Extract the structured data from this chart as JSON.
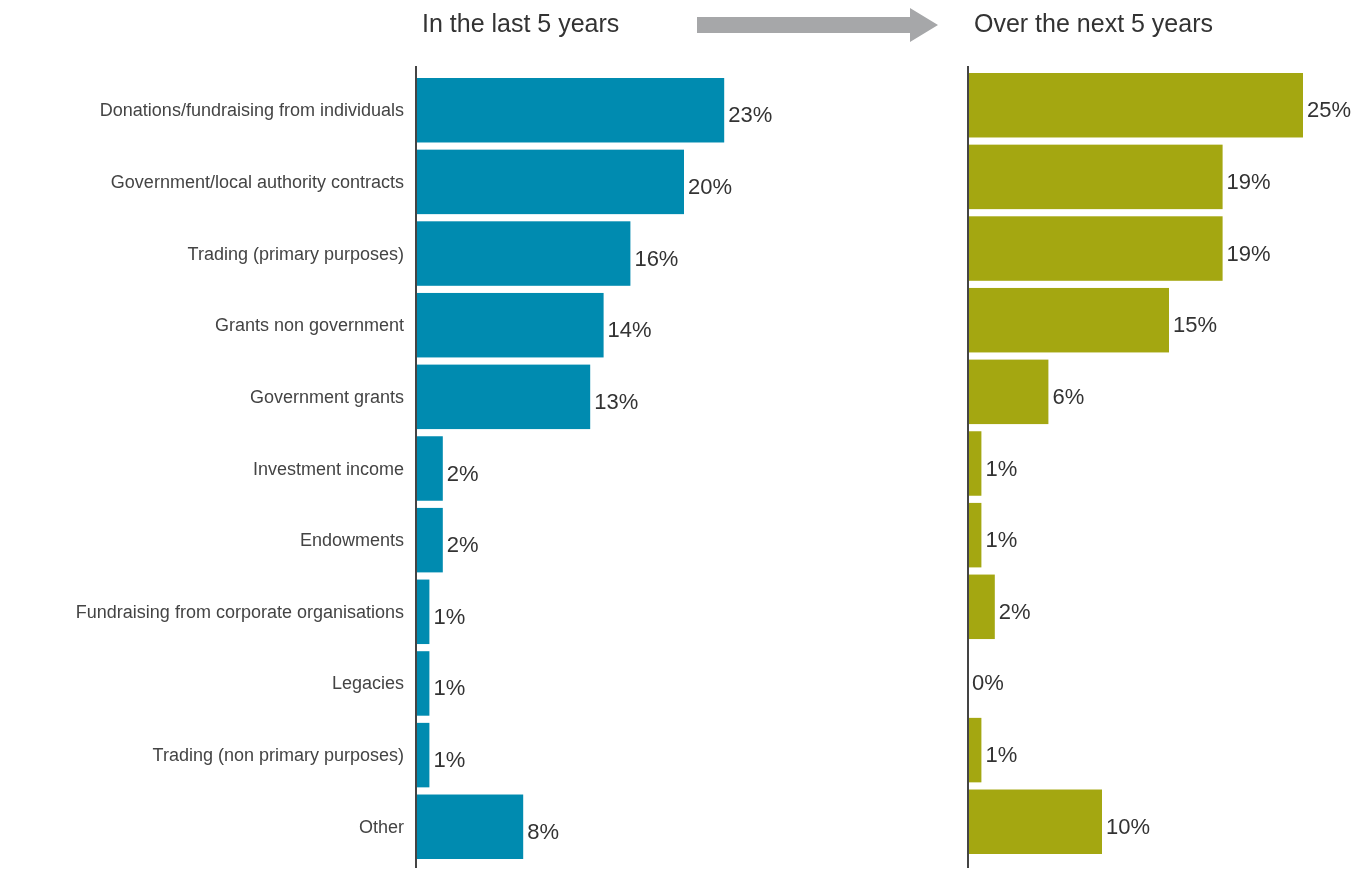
{
  "chart_data": [
    {
      "type": "bar",
      "orientation": "horizontal",
      "title": "In the last 5 years",
      "color": "#008bb0",
      "categories": [
        "Donations/fundraising from individuals",
        "Government/local authority contracts",
        "Trading (primary purposes)",
        "Grants non government",
        "Government grants",
        "Investment income",
        "Endowments",
        "Fundraising from corporate organisations",
        "Legacies",
        "Trading (non primary purposes)",
        "Other"
      ],
      "values": [
        23,
        20,
        16,
        14,
        13,
        2,
        2,
        1,
        1,
        1,
        8
      ],
      "value_labels": [
        "23%",
        "20%",
        "16%",
        "14%",
        "13%",
        "2%",
        "2%",
        "1%",
        "1%",
        "1%",
        "8%"
      ]
    },
    {
      "type": "bar",
      "orientation": "horizontal",
      "title": "Over the next 5 years",
      "color": "#a4a711",
      "categories": [
        null,
        null,
        null,
        null,
        null,
        null,
        null,
        null,
        null,
        null,
        null
      ],
      "values": [
        25,
        19,
        19,
        15,
        6,
        1,
        1,
        2,
        0,
        1,
        10
      ],
      "value_labels": [
        "25%",
        "19%",
        "19%",
        "15%",
        "6%",
        "1%",
        "1%",
        "2%",
        "0%",
        "1%",
        "10%"
      ]
    }
  ]
}
